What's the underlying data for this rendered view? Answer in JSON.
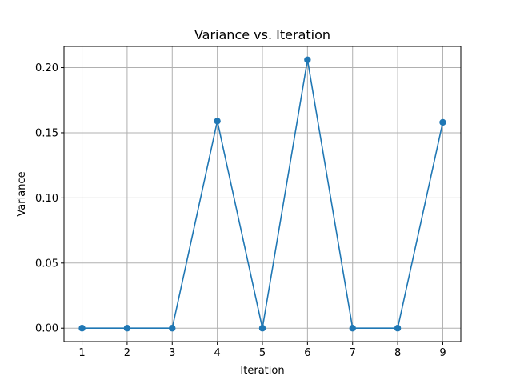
{
  "chart_data": {
    "type": "line",
    "title": "Variance vs. Iteration",
    "xlabel": "Iteration",
    "ylabel": "Variance",
    "x": [
      1,
      2,
      3,
      4,
      5,
      6,
      7,
      8,
      9
    ],
    "series": [
      {
        "values": [
          0.0,
          0.0,
          0.0,
          0.159,
          0.0,
          0.206,
          0.0,
          0.0,
          0.158
        ],
        "color": "#1f77b4",
        "marker": "circle"
      }
    ],
    "xlim": [
      0.6,
      9.4
    ],
    "ylim": [
      -0.0103,
      0.2163
    ],
    "xticks": [
      1,
      2,
      3,
      4,
      5,
      6,
      7,
      8,
      9
    ],
    "yticks": [
      0.0,
      0.05,
      0.1,
      0.15,
      0.2
    ],
    "xtick_labels": [
      "1",
      "2",
      "3",
      "4",
      "5",
      "6",
      "7",
      "8",
      "9"
    ],
    "ytick_labels": [
      "0.00",
      "0.05",
      "0.10",
      "0.15",
      "0.20"
    ],
    "grid": true,
    "grid_color": "#b0b0b0"
  }
}
